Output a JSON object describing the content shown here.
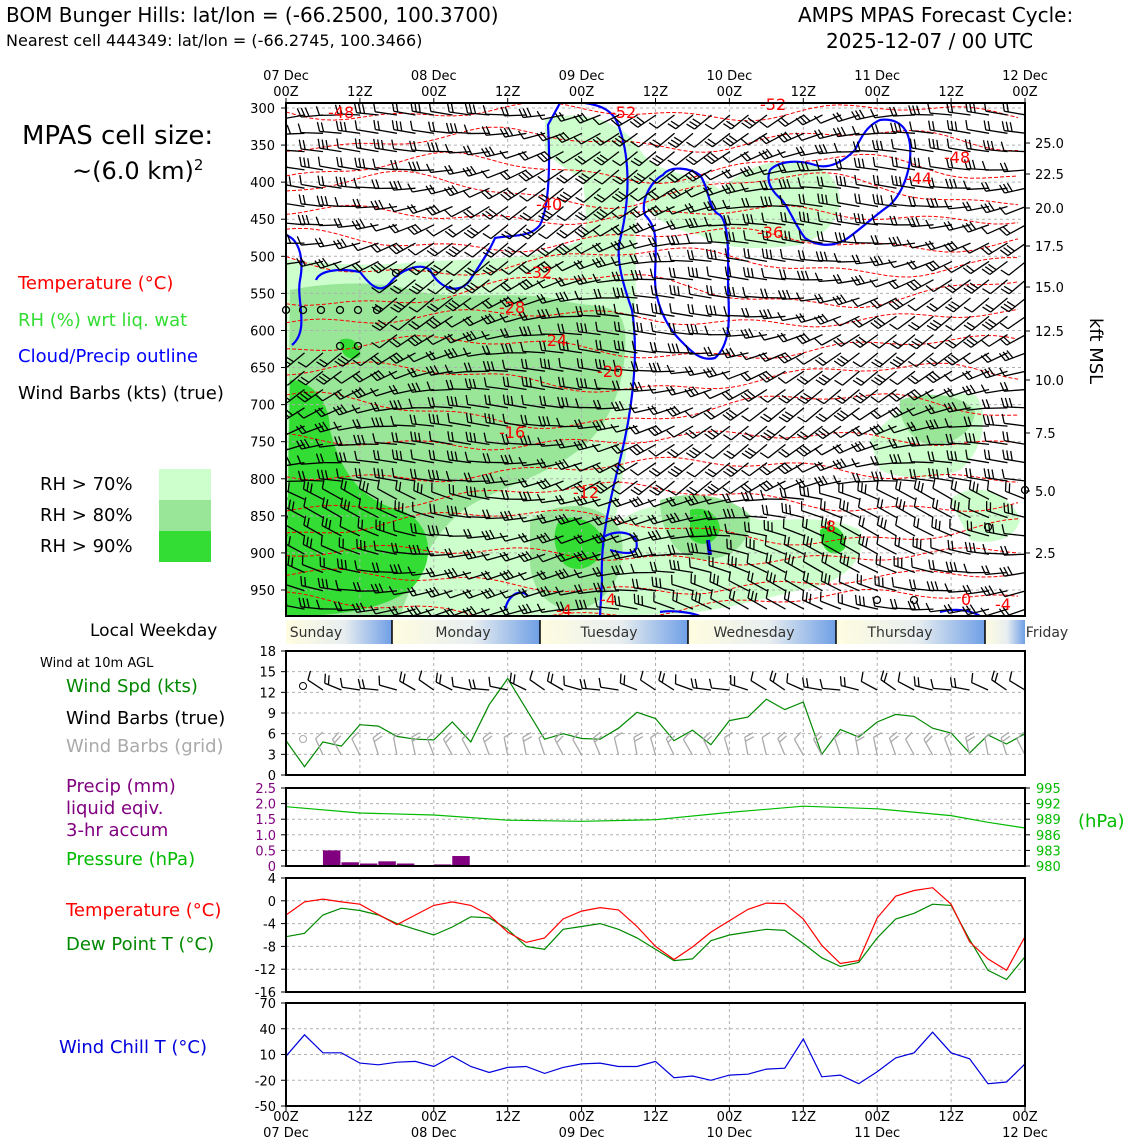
{
  "header": {
    "title_left": "BOM Bunger Hills: lat/lon = (-66.2500, 100.3700)",
    "subtitle_left": "Nearest cell 444349: lat/lon = (-66.2745, 100.3466)",
    "title_right_1": "AMPS MPAS Forecast Cycle:",
    "title_right_2": "2025-12-07 / 00 UTC"
  },
  "side": {
    "cell_size_1": "MPAS cell size:",
    "cell_size_2": "~(6.0 km)",
    "cell_size_sup": "2",
    "legend_temp": "Temperature (°C)",
    "legend_rh": "RH (%) wrt liq. wat",
    "legend_cloud": "Cloud/Precip outline",
    "legend_wind": "Wind Barbs (kts) (true)",
    "rh_levels": [
      "RH > 70%",
      "RH > 80%",
      "RH > 90%"
    ],
    "local_weekday": "Local Weekday",
    "wind_10m": "Wind at 10m AGL",
    "wind_spd": "Wind Spd (kts)",
    "wind_barbs_true": "Wind Barbs (true)",
    "wind_barbs_grid": "Wind Barbs (grid)",
    "precip_1": "Precip (mm)",
    "precip_2": "liquid eqiv.",
    "precip_3": "3-hr accum",
    "pressure": "Pressure (hPa)",
    "temperature": "Temperature (°C)",
    "dewpoint": "Dew Point T (°C)",
    "wind_chill": "Wind Chill T (°C)"
  },
  "colors": {
    "temp": "#ff0000",
    "rh": "#33dd33",
    "cloud": "#0000ff",
    "green_line": "#008800",
    "purple": "#800080",
    "pressure": "#00bb00",
    "chill": "#0000dd",
    "rh70": "#ccffcc",
    "rh80": "#99e699",
    "rh90": "#33dd33"
  },
  "chart_data": [
    {
      "type": "heatmap",
      "title": "Time-height cross section",
      "time_ticks_top": [
        {
          "date": "07 Dec",
          "hour": "00Z"
        },
        {
          "date": "",
          "hour": "12Z"
        },
        {
          "date": "08 Dec",
          "hour": "00Z"
        },
        {
          "date": "",
          "hour": "12Z"
        },
        {
          "date": "09 Dec",
          "hour": "00Z"
        },
        {
          "date": "",
          "hour": "12Z"
        },
        {
          "date": "10 Dec",
          "hour": "00Z"
        },
        {
          "date": "",
          "hour": "12Z"
        },
        {
          "date": "11 Dec",
          "hour": "00Z"
        },
        {
          "date": "",
          "hour": "12Z"
        },
        {
          "date": "12 Dec",
          "hour": "00Z"
        }
      ],
      "pressure_ticks": [
        "300",
        "350",
        "400",
        "450",
        "500",
        "550",
        "600",
        "650",
        "700",
        "750",
        "800",
        "850",
        "900",
        "950"
      ],
      "height_axis_label": "kft MSL",
      "height_ticks": [
        "25.0",
        "22.5",
        "20.0",
        "17.5",
        "15.0",
        "12.5",
        "10.0",
        "7.5",
        "5.0",
        "2.5"
      ],
      "temp_contour_labels": [
        "-48",
        "-52",
        "-52",
        "-48",
        "-44",
        "-40",
        "-36",
        "-32",
        "-28",
        "-24",
        "-20",
        "-16",
        "-12",
        "-8",
        "-4",
        "-4",
        "0",
        "-4"
      ]
    },
    {
      "type": "table",
      "title": "Local Weekday",
      "days": [
        "Sunday",
        "Monday",
        "Tuesday",
        "Wednesday",
        "Thursday",
        "Friday"
      ]
    },
    {
      "type": "line",
      "title": "Wind Spd (kts)",
      "ylim": [
        0,
        18
      ],
      "yticks": [
        "18",
        "15",
        "12",
        "9",
        "6",
        "3",
        "0"
      ],
      "hours": [
        0,
        3,
        6,
        9,
        12,
        15,
        18,
        21,
        24,
        27,
        30,
        33,
        36,
        39,
        42,
        45,
        48,
        51,
        54,
        57,
        60,
        63,
        66,
        69,
        72,
        75,
        78,
        81,
        84,
        87,
        90,
        93,
        96,
        99,
        102,
        105,
        108,
        111,
        114,
        117,
        120
      ],
      "values": [
        5,
        1.2,
        4.8,
        4.2,
        7.3,
        7.1,
        5.6,
        5.2,
        5.1,
        7.7,
        4.8,
        10.2,
        14,
        9.6,
        5.2,
        6,
        5.3,
        5.2,
        6.8,
        9.1,
        8.2,
        5,
        6.5,
        4.4,
        7.9,
        8.4,
        11,
        9.5,
        10.6,
        3,
        6.6,
        5.5,
        7.7,
        8.8,
        8.5,
        6.8,
        6.1,
        3.2,
        5.8,
        4.5,
        6
      ]
    },
    {
      "type": "bar",
      "title": "Precip (mm) / Pressure (hPa)",
      "precip_yticks": [
        "2.5",
        "2.0",
        "1.5",
        "1.0",
        "0.5",
        "0"
      ],
      "pressure_yticks": [
        "995",
        "992",
        "989",
        "986",
        "983",
        "980"
      ],
      "pressure_axis_label": "(hPa)",
      "precip_bins": [
        {
          "start": 6,
          "end": 9,
          "value": 0.5
        },
        {
          "start": 9,
          "end": 12,
          "value": 0.12
        },
        {
          "start": 12,
          "end": 15,
          "value": 0.08
        },
        {
          "start": 15,
          "end": 18,
          "value": 0.15
        },
        {
          "start": 18,
          "end": 21,
          "value": 0.08
        },
        {
          "start": 24,
          "end": 27,
          "value": 0.05
        },
        {
          "start": 27,
          "end": 30,
          "value": 0.32
        }
      ],
      "pressure_hours": [
        0,
        12,
        24,
        36,
        48,
        60,
        72,
        84,
        96,
        108,
        114,
        120
      ],
      "pressure": [
        991.4,
        990.2,
        989.8,
        988.8,
        988.6,
        988.9,
        990.3,
        991.5,
        991.0,
        989.7,
        988.4,
        987.3
      ]
    },
    {
      "type": "line",
      "title": "Temperature / Dew Point (°C)",
      "ylim": [
        -16,
        4
      ],
      "yticks": [
        "4",
        "0",
        "-4",
        "-8",
        "-12",
        "-16"
      ],
      "hours": [
        0,
        3,
        6,
        9,
        12,
        15,
        18,
        21,
        24,
        27,
        30,
        33,
        36,
        39,
        42,
        45,
        48,
        51,
        54,
        57,
        60,
        63,
        66,
        69,
        72,
        75,
        78,
        81,
        84,
        87,
        90,
        93,
        96,
        99,
        102,
        105,
        108,
        111,
        114,
        117,
        120
      ],
      "temperature": [
        -2.5,
        -0.2,
        0.3,
        -0.2,
        -0.6,
        -2.4,
        -4.2,
        -2.5,
        -0.8,
        -0.2,
        -0.8,
        -2.5,
        -5.5,
        -7.3,
        -6.5,
        -3.2,
        -1.8,
        -1.2,
        -1.6,
        -4.5,
        -8,
        -10.3,
        -8.1,
        -5.5,
        -3.5,
        -1.5,
        -0.4,
        -0.5,
        -3.2,
        -7.8,
        -11,
        -10.5,
        -3,
        0.8,
        1.8,
        2.3,
        -0.6,
        -7.2,
        -10.2,
        -12.2,
        -6.3
      ],
      "dewpoint": [
        -6.3,
        -5.7,
        -2.5,
        -1.3,
        -1.7,
        -2.5,
        -4,
        -5,
        -6,
        -4.6,
        -2.8,
        -3,
        -5,
        -8,
        -8.5,
        -5,
        -4.5,
        -4,
        -5,
        -6.5,
        -8.5,
        -10.5,
        -10.2,
        -7,
        -6,
        -5.5,
        -5,
        -5.2,
        -7.5,
        -10,
        -11.5,
        -10.8,
        -6.5,
        -3.2,
        -2.2,
        -0.6,
        -0.8,
        -6.8,
        -12.2,
        -13.8,
        -9.8
      ]
    },
    {
      "type": "line",
      "title": "Wind Chill T (°C)",
      "ylim": [
        -50,
        70
      ],
      "yticks": [
        "70",
        "40",
        "10",
        "-20",
        "-50"
      ],
      "hours": [
        0,
        3,
        6,
        9,
        12,
        15,
        18,
        21,
        24,
        27,
        30,
        33,
        36,
        39,
        42,
        45,
        48,
        51,
        54,
        57,
        60,
        63,
        66,
        69,
        72,
        75,
        78,
        81,
        84,
        87,
        90,
        93,
        96,
        99,
        102,
        105,
        108,
        111,
        114,
        117,
        120
      ],
      "values": [
        8,
        33,
        12,
        12,
        0,
        -2,
        1,
        2,
        -4,
        8,
        -4,
        -11,
        -5,
        -4,
        -12,
        -5,
        -1,
        0,
        -4,
        -4,
        2,
        -17,
        -15,
        -20,
        -14,
        -13,
        -7,
        -6,
        28,
        -16,
        -14,
        -24,
        -10,
        6,
        12,
        36,
        12,
        5,
        -24,
        -22,
        -1
      ]
    }
  ],
  "bottom_time_ticks": [
    {
      "hour": "00Z",
      "date": "07 Dec"
    },
    {
      "hour": "12Z",
      "date": ""
    },
    {
      "hour": "00Z",
      "date": "08 Dec"
    },
    {
      "hour": "12Z",
      "date": ""
    },
    {
      "hour": "00Z",
      "date": "09 Dec"
    },
    {
      "hour": "12Z",
      "date": ""
    },
    {
      "hour": "00Z",
      "date": "10 Dec"
    },
    {
      "hour": "12Z",
      "date": ""
    },
    {
      "hour": "00Z",
      "date": "11 Dec"
    },
    {
      "hour": "12Z",
      "date": ""
    },
    {
      "hour": "00Z",
      "date": "12 Dec"
    }
  ]
}
